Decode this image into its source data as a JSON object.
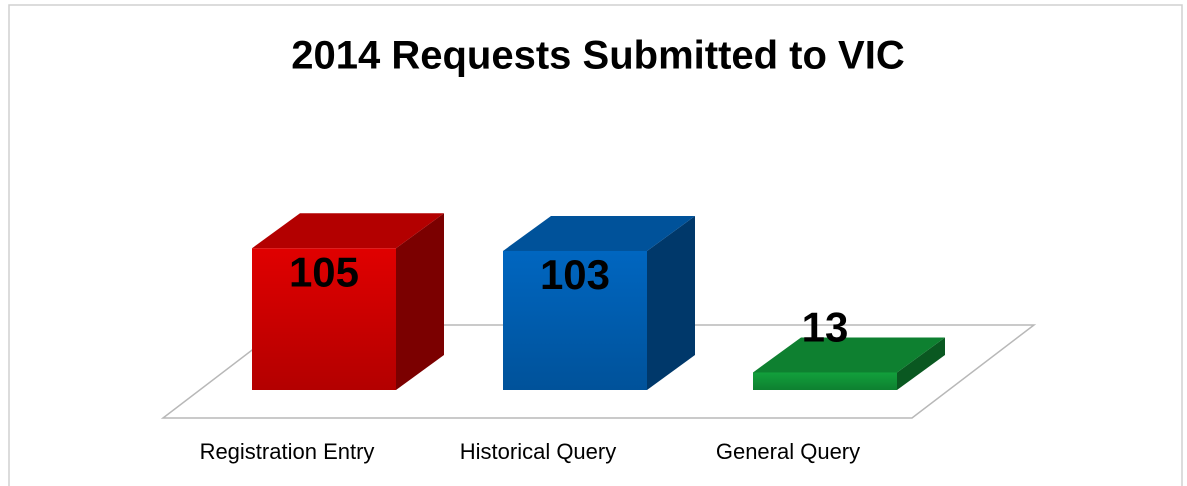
{
  "chart_data": {
    "type": "bar3d",
    "title": "2014 Requests Submitted to VIC",
    "categories": [
      "Registration Entry",
      "Historical Query",
      "General Query"
    ],
    "values": [
      105,
      103,
      13
    ],
    "colors": [
      "#e00000",
      "#0066c0",
      "#12a03c"
    ]
  }
}
